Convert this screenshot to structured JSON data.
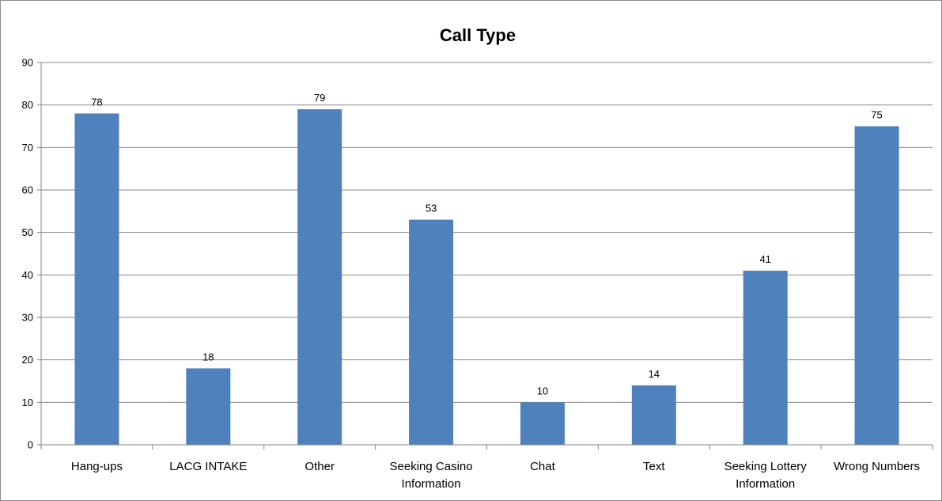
{
  "chart_data": {
    "type": "bar",
    "title": "Call Type",
    "xlabel": "",
    "ylabel": "",
    "ylim": [
      0,
      90
    ],
    "yticks": [
      0,
      10,
      20,
      30,
      40,
      50,
      60,
      70,
      80,
      90
    ],
    "categories": [
      "Hang-ups",
      "LACG INTAKE",
      "Other",
      "Seeking Casino Information",
      "Chat",
      "Text",
      "Seeking Lottery Information",
      "Wrong Numbers"
    ],
    "category_lines": [
      [
        "Hang-ups"
      ],
      [
        "LACG INTAKE"
      ],
      [
        "Other"
      ],
      [
        "Seeking Casino",
        "Information"
      ],
      [
        "Chat"
      ],
      [
        "Text"
      ],
      [
        "Seeking Lottery",
        "Information"
      ],
      [
        "Wrong Numbers"
      ]
    ],
    "values": [
      78,
      18,
      79,
      53,
      10,
      14,
      41,
      75
    ],
    "bar_color": "#4f81bd",
    "grid": true,
    "legend": "none"
  }
}
